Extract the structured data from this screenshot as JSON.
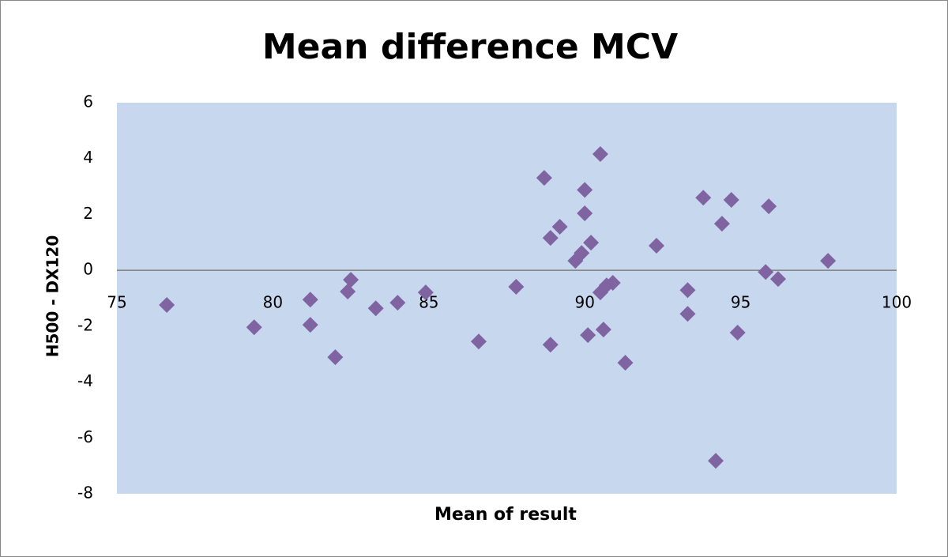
{
  "chart_data": {
    "type": "scatter",
    "title": "Mean difference MCV",
    "xlabel": "Mean of result",
    "ylabel": "H500 - DX120",
    "x": [
      76.6,
      79.4,
      81.2,
      81.2,
      82.0,
      82.4,
      82.5,
      83.3,
      84.0,
      84.9,
      86.6,
      87.8,
      88.7,
      88.9,
      88.9,
      89.2,
      89.7,
      89.9,
      90.0,
      90.0,
      90.2,
      90.1,
      90.5,
      90.6,
      90.5,
      90.7,
      90.9,
      91.3,
      92.3,
      93.3,
      93.3,
      93.8,
      94.4,
      94.2,
      94.7,
      94.9,
      95.9,
      95.8,
      96.2,
      97.8
    ],
    "values": [
      -1.24,
      -2.04,
      -1.05,
      -1.95,
      -3.11,
      -0.76,
      -0.34,
      -1.36,
      -1.16,
      -0.79,
      -2.55,
      -0.59,
      3.31,
      -2.66,
      1.16,
      1.56,
      0.34,
      0.62,
      2.88,
      2.04,
      0.99,
      -2.32,
      4.16,
      -2.12,
      -0.79,
      -0.54,
      -0.45,
      -3.31,
      0.88,
      -1.56,
      -0.71,
      2.6,
      1.67,
      -6.82,
      2.52,
      -2.23,
      2.29,
      -0.06,
      -0.31,
      0.34
    ],
    "color": "#8064a2",
    "plot_color": "#c6d7ee",
    "xlim": [
      75,
      100
    ],
    "xticks": [
      75,
      80,
      85,
      90,
      95,
      100
    ],
    "ylim": [
      -8,
      6
    ],
    "yticks": [
      -8,
      -6,
      -4,
      -2,
      0,
      2,
      4,
      6
    ]
  }
}
